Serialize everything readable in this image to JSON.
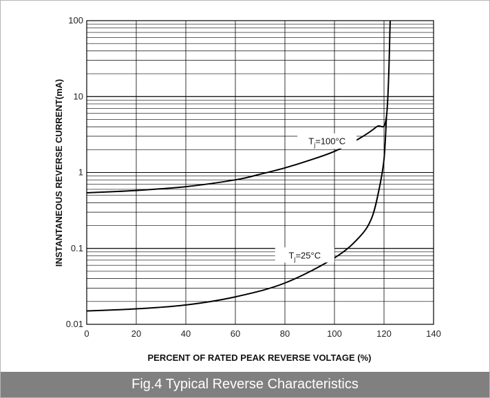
{
  "caption": "Fig.4 Typical Reverse Characteristics",
  "chart_data": {
    "type": "line",
    "xlabel": "PERCENT OF RATED PEAK REVERSE VOLTAGE (%)",
    "ylabel": "INSTANTANEOUS REVERSE CURRENT(mA)",
    "xlim": [
      0,
      140
    ],
    "ylim": [
      0.01,
      100
    ],
    "y_scale": "log",
    "grid": true,
    "x_ticks": [
      "0",
      "20",
      "40",
      "60",
      "80",
      "100",
      "120",
      "140"
    ],
    "y_ticks": [
      "0.01",
      "0.1",
      "1",
      "10",
      "100"
    ],
    "series": [
      {
        "name": "Tj=100°C",
        "label_main": "T",
        "label_sub": "j",
        "label_rest": "=100°C",
        "points": [
          [
            0,
            0.54
          ],
          [
            20,
            0.58
          ],
          [
            40,
            0.65
          ],
          [
            60,
            0.8
          ],
          [
            70,
            0.95
          ],
          [
            80,
            1.15
          ],
          [
            90,
            1.45
          ],
          [
            100,
            1.9
          ],
          [
            110,
            2.8
          ],
          [
            117,
            4.0
          ],
          [
            121,
            5.5
          ],
          [
            122.5,
            100
          ]
        ]
      },
      {
        "name": "Tj=25°C",
        "label_main": "T",
        "label_sub": "j",
        "label_rest": "=25°C",
        "points": [
          [
            0,
            0.015
          ],
          [
            20,
            0.016
          ],
          [
            40,
            0.018
          ],
          [
            60,
            0.023
          ],
          [
            80,
            0.035
          ],
          [
            100,
            0.075
          ],
          [
            110,
            0.14
          ],
          [
            115,
            0.25
          ],
          [
            118,
            0.6
          ],
          [
            120,
            1.5
          ],
          [
            121,
            5.5
          ]
        ]
      }
    ],
    "colors": {
      "line": "#000000",
      "grid": "#000000",
      "caption_bg": "#808080"
    }
  }
}
